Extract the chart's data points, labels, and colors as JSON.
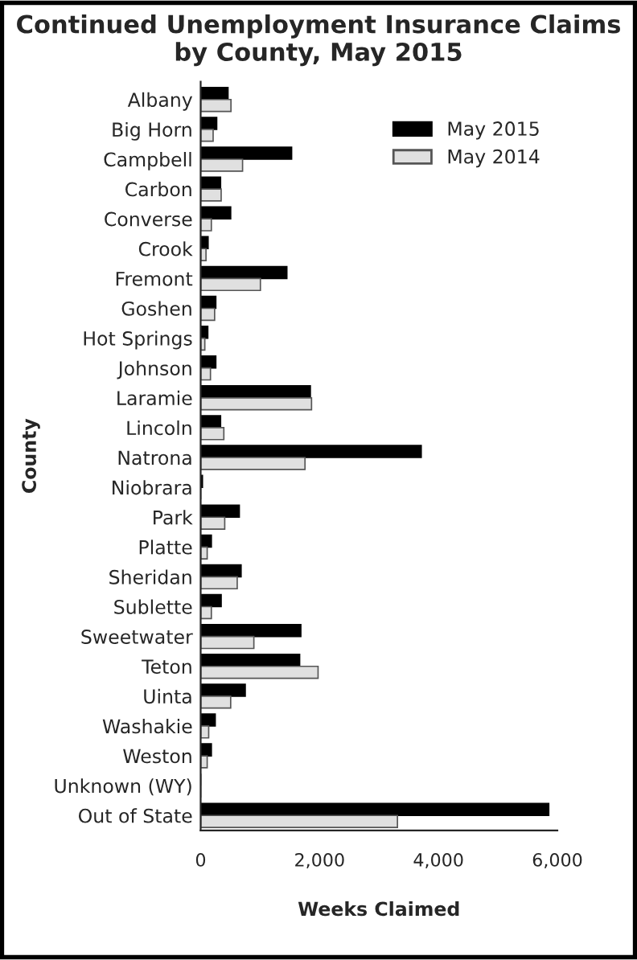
{
  "chart_data": {
    "type": "bar",
    "orientation": "horizontal",
    "title": "Continued Unemployment Insurance Claims by County, May 2015",
    "xlabel": "Weeks Claimed",
    "ylabel": "County",
    "categories": [
      "Albany",
      "Big Horn",
      "Campbell",
      "Carbon",
      "Converse",
      "Crook",
      "Fremont",
      "Goshen",
      "Hot Springs",
      "Johnson",
      "Laramie",
      "Lincoln",
      "Natrona",
      "Niobrara",
      "Park",
      "Platte",
      "Sheridan",
      "Sublette",
      "Sweetwater",
      "Teton",
      "Uinta",
      "Washakie",
      "Weston",
      "Unknown (WY)",
      "Out of State"
    ],
    "series": [
      {
        "name": "May 2015",
        "color": "#000000",
        "values": [
          460,
          270,
          1530,
          335,
          505,
          125,
          1450,
          255,
          120,
          255,
          1845,
          335,
          3710,
          30,
          650,
          180,
          680,
          345,
          1685,
          1665,
          750,
          245,
          180,
          null,
          5855
        ]
      },
      {
        "name": "May 2014",
        "color": "#e0e0e0",
        "values": [
          510,
          210,
          705,
          345,
          180,
          90,
          1005,
          235,
          70,
          165,
          1865,
          390,
          1755,
          null,
          405,
          110,
          615,
          180,
          895,
          1975,
          505,
          135,
          110,
          null,
          3310
        ]
      }
    ],
    "xlim": [
      0,
      6000
    ],
    "xticks": [
      0,
      {
        "value": 2000,
        "label": "2,000"
      },
      {
        "value": 4000,
        "label": "4,000"
      },
      {
        "value": 6000,
        "label": "6,000"
      }
    ],
    "grid": false,
    "legend": "top right"
  }
}
